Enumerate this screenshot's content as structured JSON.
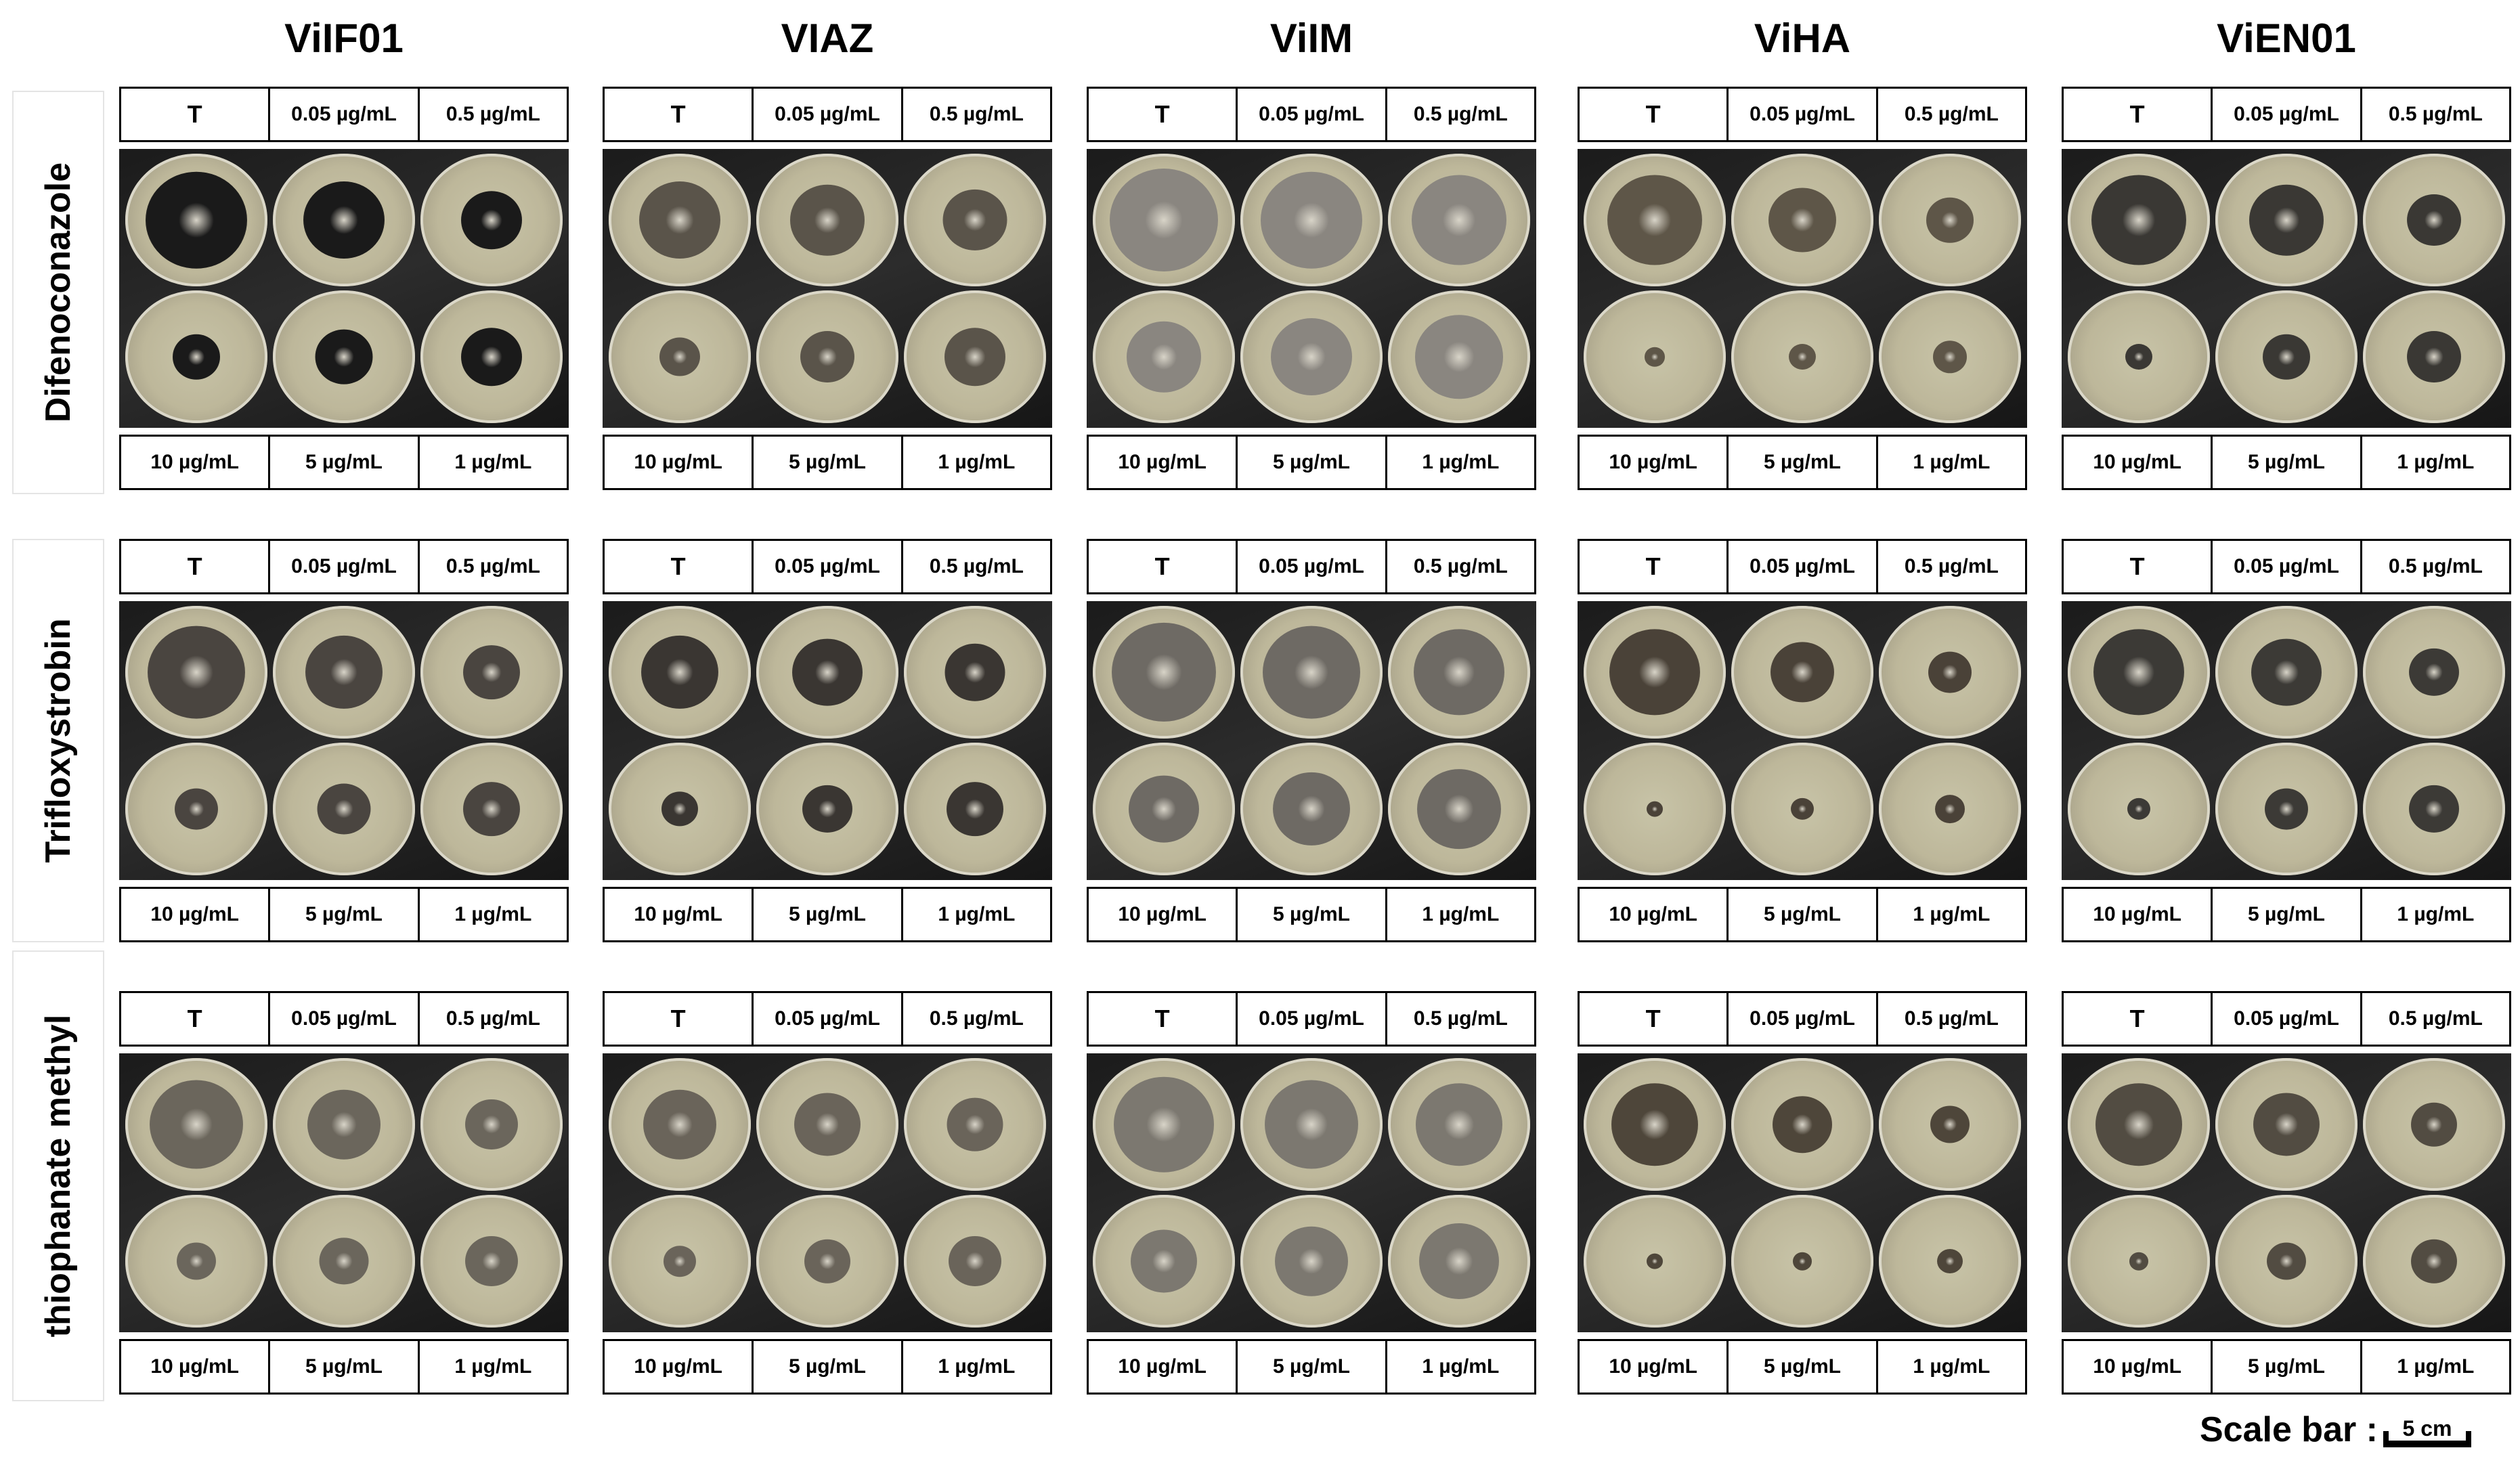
{
  "strains": [
    "ViIF01",
    "VIAZ",
    "ViIM",
    "ViHA",
    "ViEN01"
  ],
  "fungicides": [
    "Difenoconazole",
    "Trifloxystrobin",
    "thiophanate methyl"
  ],
  "top_labels": [
    "T",
    "0.05 µg/mL",
    "0.5 µg/mL"
  ],
  "bottom_labels": [
    "10 µg/mL",
    "5 µg/mL",
    "1 µg/mL"
  ],
  "scale": {
    "label": "Scale bar :",
    "unit": "5 cm"
  },
  "colors": {
    "background": "#ffffff",
    "text": "#000000",
    "photo_background": "#222222"
  }
}
